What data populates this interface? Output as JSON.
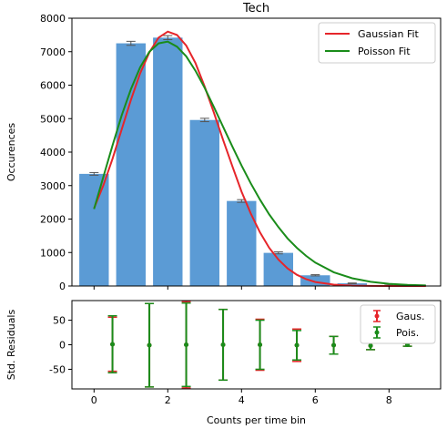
{
  "chart_data": [
    {
      "type": "bar",
      "title": "Tech",
      "xlabel": "",
      "ylabel": "Occurences",
      "xlim": [
        -0.6,
        9.4
      ],
      "ylim": [
        0,
        8000
      ],
      "yticks": [
        0,
        1000,
        2000,
        3000,
        4000,
        5000,
        6000,
        7000,
        8000
      ],
      "grid": false,
      "legend_position": "top-right",
      "bars": {
        "x": [
          0,
          1,
          2,
          3,
          4,
          5,
          6,
          7,
          8
        ],
        "values": [
          3350,
          7250,
          7420,
          4960,
          2540,
          990,
          320,
          80,
          20
        ],
        "errors": [
          40,
          60,
          60,
          50,
          40,
          30,
          18,
          10,
          5
        ],
        "color": "#5b9bd5"
      },
      "series": [
        {
          "name": "Gaussian Fit",
          "color": "#e6252a",
          "x": [
            0,
            0.25,
            0.5,
            0.75,
            1,
            1.25,
            1.5,
            1.75,
            2,
            2.25,
            2.5,
            2.75,
            3,
            3.25,
            3.5,
            3.75,
            4,
            4.25,
            4.5,
            4.75,
            5,
            5.25,
            5.5,
            5.75,
            6,
            6.5,
            7,
            7.5,
            8,
            8.5,
            9
          ],
          "values": [
            2320,
            3000,
            3800,
            4680,
            5560,
            6350,
            6980,
            7420,
            7600,
            7500,
            7180,
            6660,
            5960,
            5180,
            4370,
            3580,
            2820,
            2170,
            1600,
            1140,
            790,
            525,
            335,
            205,
            120,
            40,
            12,
            3,
            1,
            0,
            0
          ]
        },
        {
          "name": "Poisson Fit",
          "color": "#1a8c1a",
          "x": [
            0,
            0.25,
            0.5,
            0.75,
            1,
            1.25,
            1.5,
            1.75,
            2,
            2.25,
            2.5,
            2.75,
            3,
            3.25,
            3.5,
            3.75,
            4,
            4.25,
            4.5,
            4.75,
            5,
            5.25,
            5.5,
            5.75,
            6,
            6.5,
            7,
            7.5,
            8,
            8.5,
            9
          ],
          "values": [
            2300,
            3250,
            4200,
            5100,
            5880,
            6530,
            7000,
            7250,
            7300,
            7150,
            6860,
            6430,
            5920,
            5350,
            4760,
            4170,
            3600,
            3070,
            2580,
            2140,
            1760,
            1420,
            1140,
            900,
            700,
            410,
            230,
            125,
            65,
            33,
            16
          ]
        }
      ]
    },
    {
      "type": "scatter",
      "title": "",
      "xlabel": "Counts per time bin",
      "ylabel": "Std. Residuals",
      "xlim": [
        -0.6,
        9.4
      ],
      "ylim": [
        -90,
        90
      ],
      "xticks": [
        0,
        2,
        4,
        6,
        8
      ],
      "yticks": [
        -50,
        0,
        50
      ],
      "grid": false,
      "legend_position": "top-right",
      "series": [
        {
          "name": "Gaus.",
          "color": "#e6252a",
          "x": [
            0.5,
            1.5,
            2.5,
            3.5,
            4.5,
            5.5,
            6.5,
            7.5,
            8.5
          ],
          "values": [
            1,
            -1,
            0,
            0,
            0,
            -1,
            -1,
            -2,
            0
          ],
          "errors": [
            55,
            85,
            88,
            72,
            52,
            33,
            18,
            8,
            3
          ]
        },
        {
          "name": "Pois.",
          "color": "#1a8c1a",
          "x": [
            0.5,
            1.5,
            2.5,
            3.5,
            4.5,
            5.5,
            6.5,
            7.5,
            8.5
          ],
          "values": [
            1,
            -1,
            0,
            0,
            0,
            -1,
            -1,
            -2,
            0
          ],
          "errors": [
            58,
            85,
            85,
            72,
            50,
            30,
            18,
            8,
            3
          ]
        }
      ]
    }
  ]
}
